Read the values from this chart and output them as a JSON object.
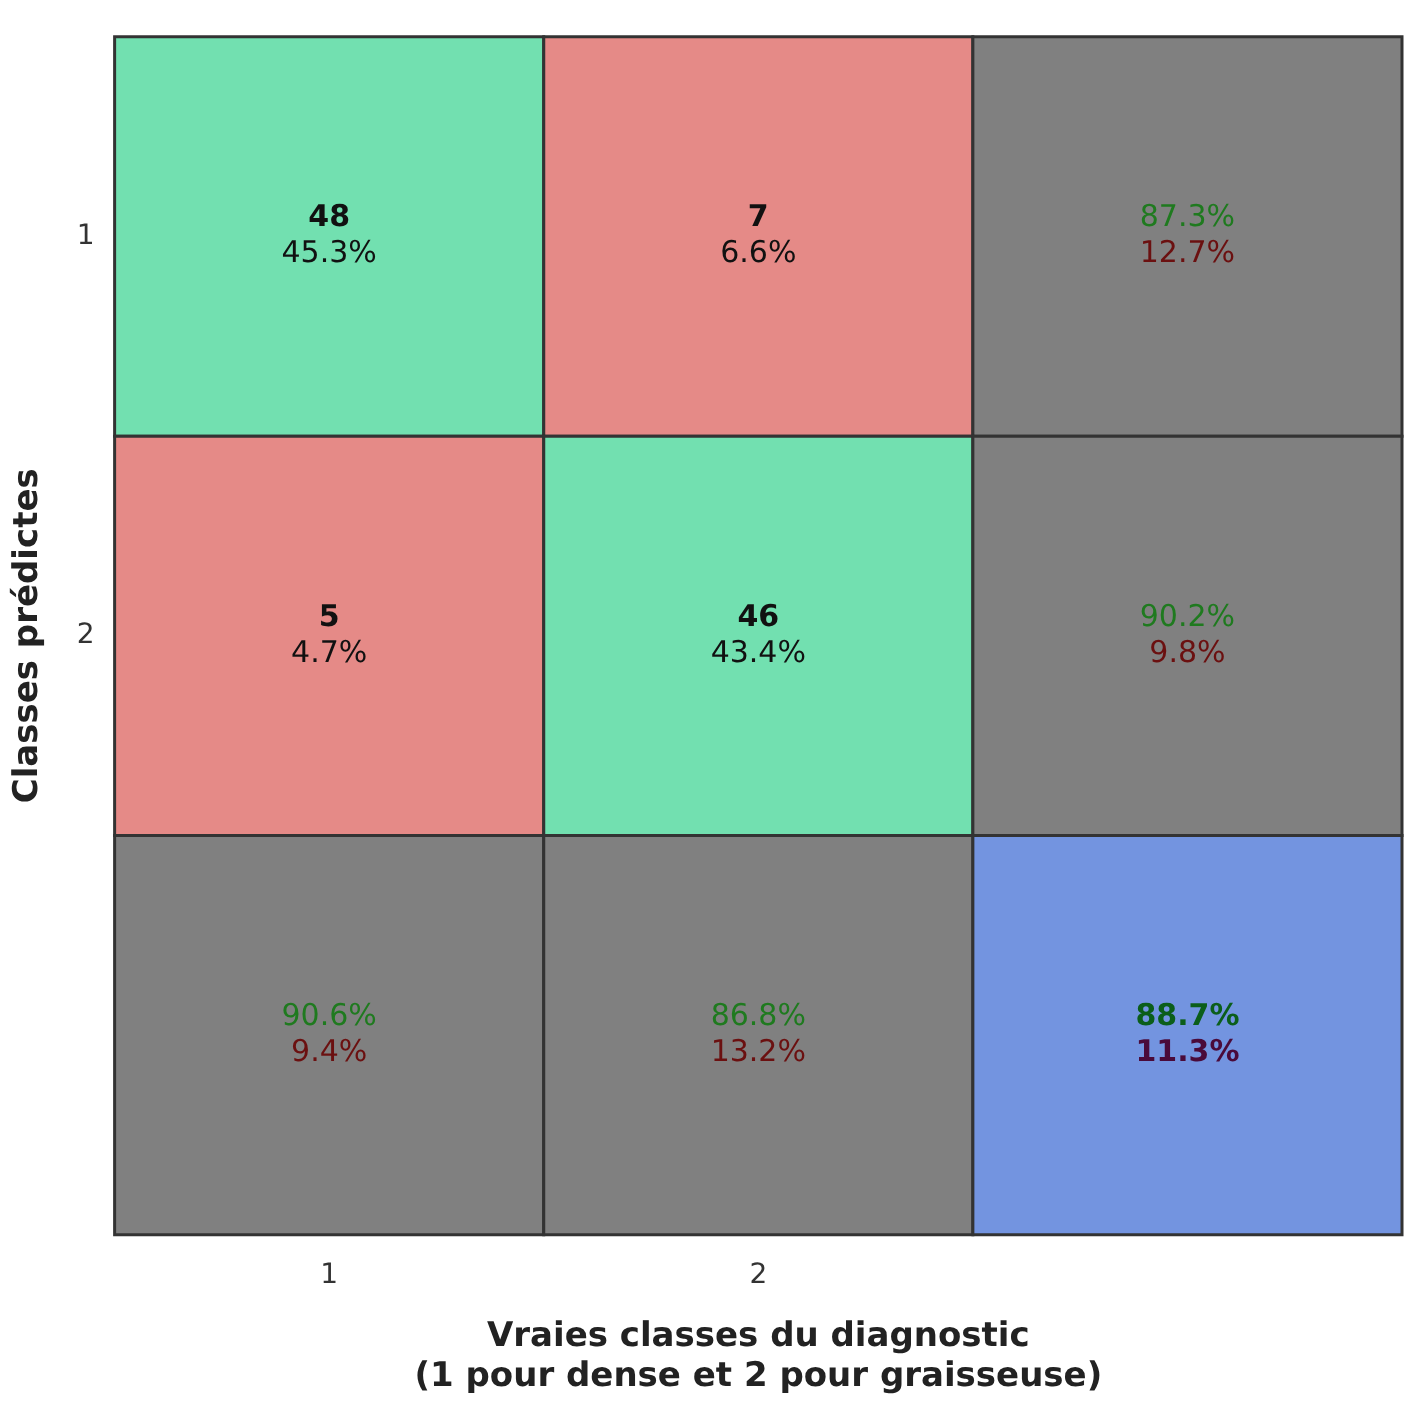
{
  "chart_data": {
    "type": "heatmap",
    "xlabel": "Vraies classes du diagnostic\n(1 pour dense et 2 pour graisseuse)",
    "ylabel": "Classes prédictes",
    "categories": [
      "1",
      "2",
      null
    ],
    "y_categories": [
      "1",
      "2",
      null
    ],
    "cells": [
      [
        48,
        7,
        87.3
      ],
      [
        5,
        46,
        90.2
      ],
      [
        90.6,
        86.8,
        88.7
      ]
    ],
    "cell_labels": [
      [
        "48",
        "7",
        "87.3%"
      ],
      [
        "5",
        "46",
        "90.2%"
      ],
      [
        "90.6%",
        "86.8%",
        "88.7%"
      ]
    ],
    "annotations": [
      "45.3%",
      "6.6%",
      "12.7%",
      "4.7%",
      "43.4%",
      "9.8%",
      "9.4%",
      "13.2%",
      "11.3%"
    ],
    "colors": [
      [
        "#72e0b0",
        "#e58a87",
        "#808080"
      ],
      [
        "#e58a87",
        "#72e0b0",
        "#808080"
      ],
      [
        "#808080",
        "#808080",
        "#7394e0"
      ]
    ]
  }
}
